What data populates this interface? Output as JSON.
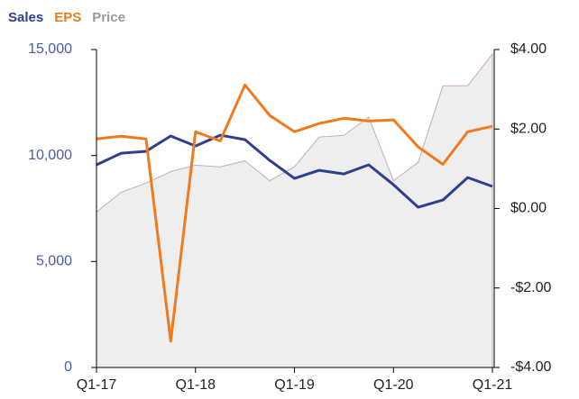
{
  "chart_data": {
    "type": "line",
    "categories": [
      "Q1-17",
      null,
      null,
      null,
      "Q1-18",
      null,
      null,
      null,
      "Q1-19",
      null,
      null,
      null,
      "Q1-20",
      null,
      null,
      null,
      "Q1-21"
    ],
    "series": [
      {
        "name": "Sales",
        "color": "#2e3f8f",
        "axis": "y",
        "values": [
          9560,
          10110,
          10200,
          10920,
          10450,
          10960,
          10750,
          9770,
          8920,
          9300,
          9130,
          9560,
          8620,
          7560,
          7900,
          8960,
          8540
        ]
      },
      {
        "name": "EPS",
        "color": "#f07a1e",
        "axis": "y2",
        "values": [
          1.75,
          1.82,
          1.75,
          -3.34,
          1.93,
          1.7,
          3.11,
          2.34,
          1.93,
          2.14,
          2.27,
          2.2,
          2.23,
          1.55,
          1.11,
          1.93,
          2.07
        ]
      },
      {
        "name": "Price",
        "color": "#999999",
        "axis": "y2",
        "style": "area",
        "values": [
          -0.09,
          0.41,
          0.64,
          0.93,
          1.09,
          1.05,
          1.2,
          0.7,
          1.05,
          1.8,
          1.84,
          2.3,
          0.7,
          1.16,
          3.09,
          3.09,
          3.89
        ]
      }
    ],
    "ylim": [
      0,
      15000
    ],
    "yticks": [
      0,
      {
        "value": 5000,
        "label": "5,000"
      },
      {
        "value": 10000,
        "label": "10,000"
      },
      {
        "value": 15000,
        "label": "15,000"
      }
    ],
    "y2lim": [
      -4,
      4
    ],
    "y2ticks": [
      {
        "value": -4,
        "label": "-$4.00"
      },
      {
        "value": -2,
        "label": "-$2.00"
      },
      {
        "value": 0,
        "label": "$0.00"
      },
      {
        "value": 2,
        "label": "$2.00"
      },
      {
        "value": 4,
        "label": "$4.00"
      }
    ]
  }
}
